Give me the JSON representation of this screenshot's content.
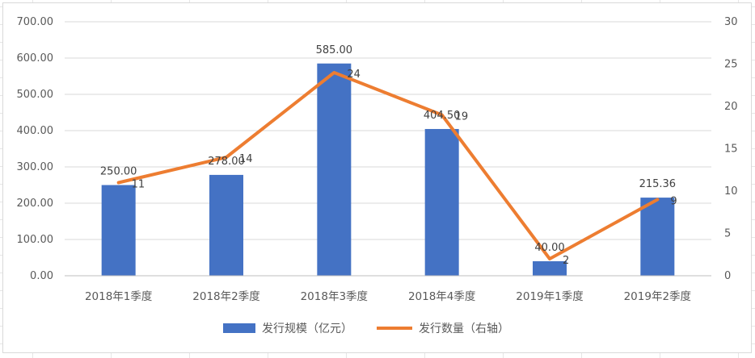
{
  "chart_data": {
    "type": "bar",
    "categories": [
      "2018年1季度",
      "2018年2季度",
      "2018年3季度",
      "2018年4季度",
      "2019年1季度",
      "2019年2季度"
    ],
    "series": [
      {
        "name": "发行规模（亿元）",
        "type": "bar",
        "axis": "left",
        "values": [
          250.0,
          278.0,
          585.0,
          404.5,
          40.0,
          215.36
        ],
        "labels": [
          "250.00",
          "278.00",
          "585.00",
          "404.50",
          "40.00",
          "215.36"
        ],
        "color": "#4472C4"
      },
      {
        "name": "发行数量（右轴）",
        "type": "line",
        "axis": "right",
        "values": [
          11,
          14,
          24,
          19,
          2,
          9
        ],
        "labels": [
          "11",
          "14",
          "24",
          "19",
          "2",
          "9"
        ],
        "color": "#ED7D31"
      }
    ],
    "y_left": {
      "min": 0,
      "max": 700,
      "ticks": [
        "0.00",
        "100.00",
        "200.00",
        "300.00",
        "400.00",
        "500.00",
        "600.00",
        "700.00"
      ]
    },
    "y_right": {
      "min": 0,
      "max": 30,
      "ticks": [
        "0",
        "5",
        "10",
        "15",
        "20",
        "25",
        "30"
      ]
    },
    "grid": true,
    "legend_position": "bottom"
  }
}
